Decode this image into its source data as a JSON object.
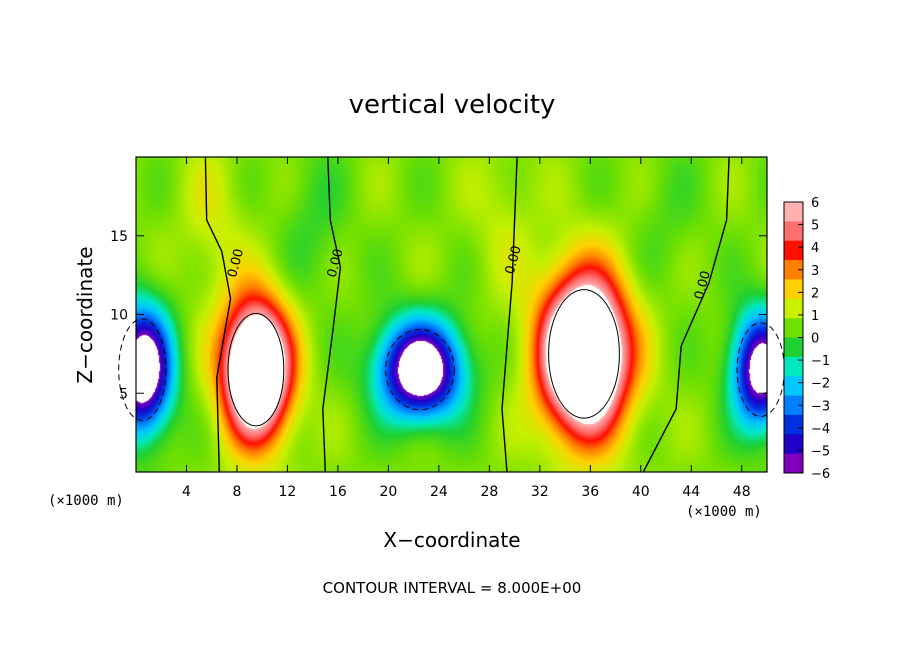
{
  "chart_data": {
    "type": "heatmap",
    "title": "vertical velocity",
    "xlabel": "X−coordinate",
    "ylabel": "Z−coordinate",
    "x_unit_left": "(×1000 m)",
    "x_unit_right": "(×1000 m)",
    "xlim": [
      0,
      50
    ],
    "ylim": [
      0,
      20
    ],
    "x_ticks": [
      4,
      8,
      12,
      16,
      20,
      24,
      28,
      32,
      36,
      40,
      44,
      48
    ],
    "y_ticks": [
      5,
      10,
      15
    ],
    "colorbar": {
      "ticks": [
        6,
        5,
        4,
        3,
        2,
        1,
        0,
        -1,
        -2,
        -3,
        -4,
        -5,
        -6
      ],
      "tick_labels": [
        "6",
        "5",
        "4",
        "3",
        "2",
        "1",
        "0",
        "−1",
        "−2",
        "−3",
        "−4",
        "−5",
        "−6"
      ],
      "range": [
        -6,
        6
      ]
    },
    "zero_contour_label": "0.00",
    "cells": [
      {
        "x": 0.5,
        "z": 6.5,
        "amp": -9,
        "sx": 2.2,
        "sz": 3.8
      },
      {
        "x": 9.5,
        "z": 6.5,
        "amp": 11,
        "sx": 2.6,
        "sz": 4.2
      },
      {
        "x": 22.5,
        "z": 6.5,
        "amp": -9,
        "sx": 3.2,
        "sz": 3.0
      },
      {
        "x": 35.5,
        "z": 7.5,
        "amp": 12,
        "sx": 3.3,
        "sz": 4.8
      },
      {
        "x": 49.5,
        "z": 6.5,
        "amp": -8,
        "sx": 2.2,
        "sz": 3.5
      }
    ],
    "footnote": "CONTOUR INTERVAL = 8.000E+00"
  },
  "colors": {
    "scale": [
      "#8000c0",
      "#2000c8",
      "#0030e0",
      "#0080ff",
      "#00c8ff",
      "#00e8c0",
      "#20d030",
      "#70e000",
      "#c8f000",
      "#ffd000",
      "#ff8000",
      "#ff1000",
      "#ff7070",
      "#ffb0b0"
    ]
  }
}
